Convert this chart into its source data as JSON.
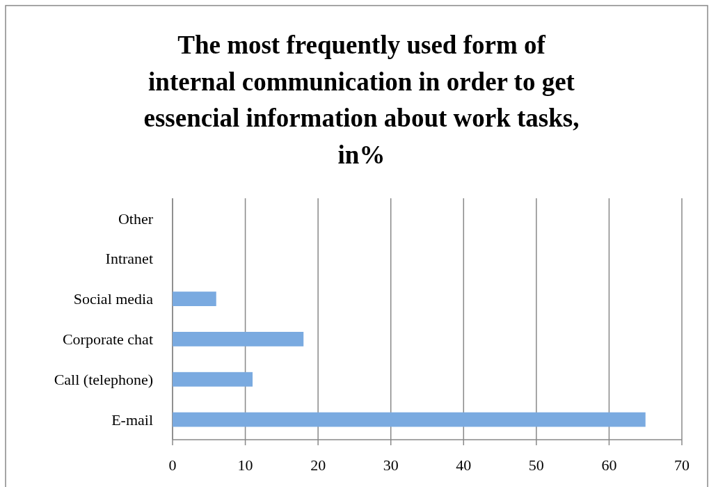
{
  "chart_data": {
    "type": "bar",
    "orientation": "horizontal",
    "title": "The most frequently used form of internal communication in order to get essencial information about work tasks, in%",
    "categories": [
      "Other",
      "Intranet",
      "Social media",
      "Corporate chat",
      "Call (telephone)",
      "E-mail"
    ],
    "values": [
      0,
      0,
      6,
      18,
      11,
      65
    ],
    "color": "#7aaae0",
    "xlim": [
      0,
      70
    ],
    "xticks": [
      0,
      10,
      20,
      30,
      40,
      50,
      60,
      70
    ],
    "grid": "x"
  }
}
